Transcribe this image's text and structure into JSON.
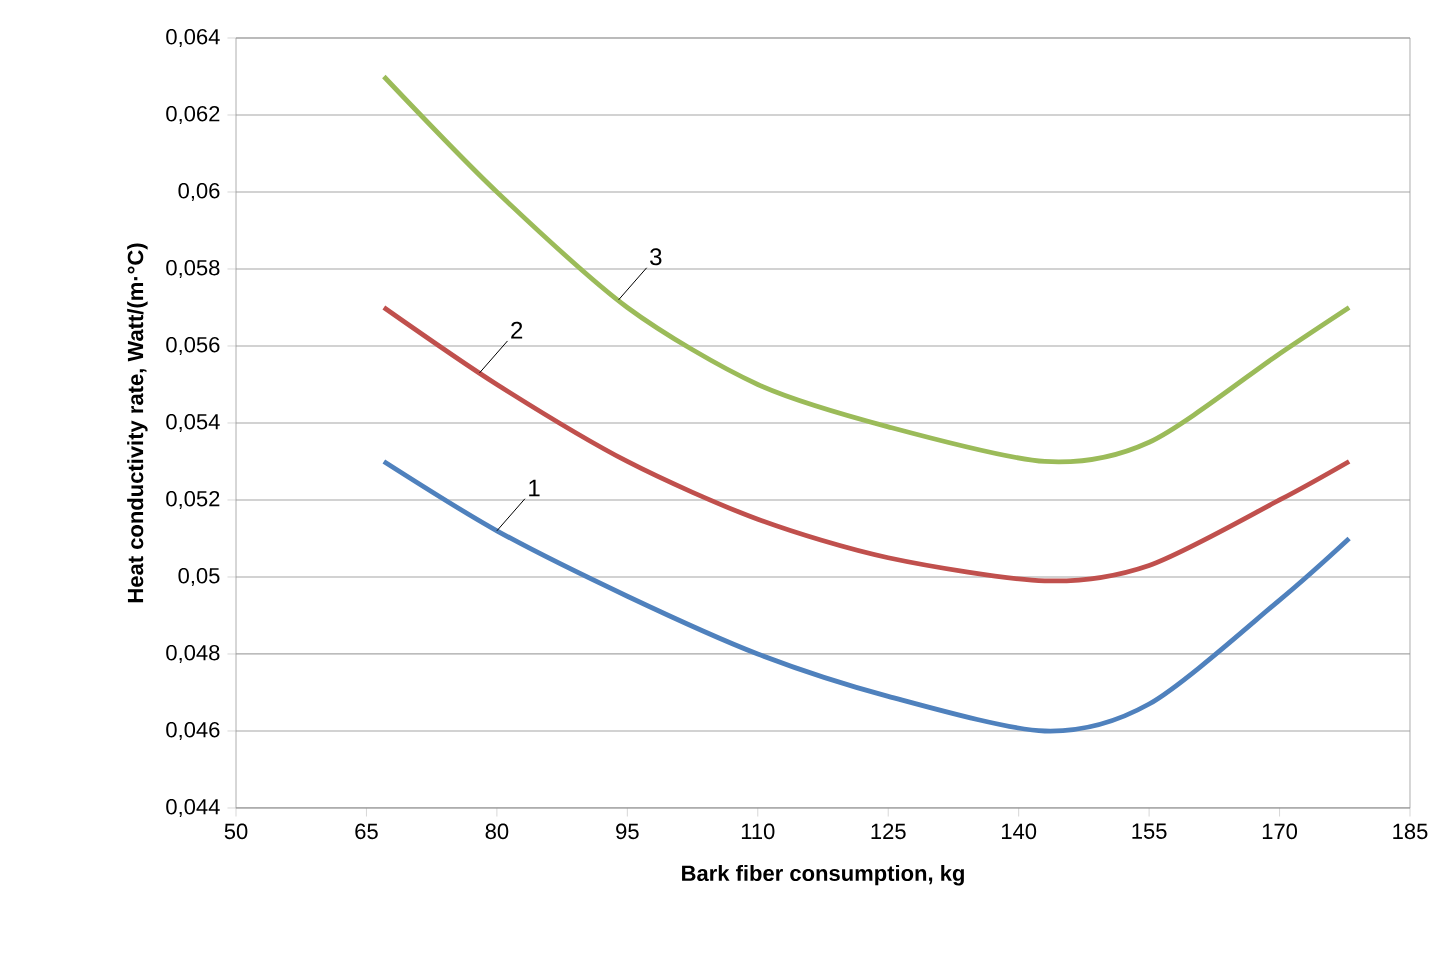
{
  "chart_data": {
    "type": "line",
    "xlabel": "Bark fiber consumption, kg",
    "ylabel": "Heat conductivity rate, Watt/(m·°C)",
    "x": [
      67,
      80,
      95,
      110,
      125,
      143,
      155,
      170,
      178
    ],
    "series": [
      {
        "color": "#4f81bd",
        "values": [
          0.053,
          0.0512,
          0.0495,
          0.048,
          0.0469,
          0.046,
          0.0467,
          0.0494,
          0.051
        ]
      },
      {
        "color": "#c0504d",
        "values": [
          0.057,
          0.055,
          0.053,
          0.0515,
          0.0505,
          0.0499,
          0.0503,
          0.052,
          0.053
        ]
      },
      {
        "color": "#9bbb59",
        "values": [
          0.063,
          0.06,
          0.057,
          0.055,
          0.0539,
          0.053,
          0.0535,
          0.0558,
          0.057
        ]
      }
    ],
    "annotations": [
      {
        "text": "1",
        "x": 80,
        "y": 0.0512
      },
      {
        "text": "2",
        "x": 78,
        "y": 0.0553
      },
      {
        "text": "3",
        "x": 94,
        "y": 0.0572
      }
    ],
    "xlim": [
      50,
      185
    ],
    "xticks": [
      50,
      65,
      80,
      95,
      110,
      125,
      140,
      155,
      170,
      185
    ],
    "ylim": [
      0.044,
      0.064
    ],
    "yticks": [
      {
        "value": 0.044,
        "label": "0,044"
      },
      {
        "value": 0.046,
        "label": "0,046"
      },
      {
        "value": 0.048,
        "label": "0,048"
      },
      {
        "value": 0.05,
        "label": "0,05"
      },
      {
        "value": 0.052,
        "label": "0,052"
      },
      {
        "value": 0.054,
        "label": "0,054"
      },
      {
        "value": 0.056,
        "label": "0,056"
      },
      {
        "value": 0.058,
        "label": "0,058"
      },
      {
        "value": 0.06,
        "label": "0,06"
      },
      {
        "value": 0.062,
        "label": "0,062"
      },
      {
        "value": 0.064,
        "label": "0,064"
      }
    ],
    "grid": "y",
    "marker": "none",
    "line_style": "solid"
  }
}
